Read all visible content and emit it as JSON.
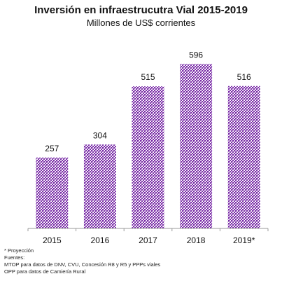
{
  "chart_data": {
    "type": "bar",
    "title": "Inversión en infraestrucutra Vial 2015-2019",
    "subtitle": "Millones de US$ corrientes",
    "categories": [
      "2015",
      "2016",
      "2017",
      "2018",
      "2019*"
    ],
    "values": [
      257,
      304,
      515,
      596,
      516
    ],
    "data_labels": [
      "257",
      "304",
      "515",
      "596",
      "516"
    ],
    "xlabel": "",
    "ylabel": "",
    "ylim": [
      0,
      650
    ],
    "grid": false,
    "legend": "none",
    "bar_color": "#7b2fa8",
    "bar_pattern": "dotted"
  },
  "notes": [
    "* Proyección",
    "Fuentes:",
    "MTOP para datos de DNV, CVU, Concesión R8 y R5 y PPPs viales",
    "OPP para datos de Camiería Rural"
  ]
}
